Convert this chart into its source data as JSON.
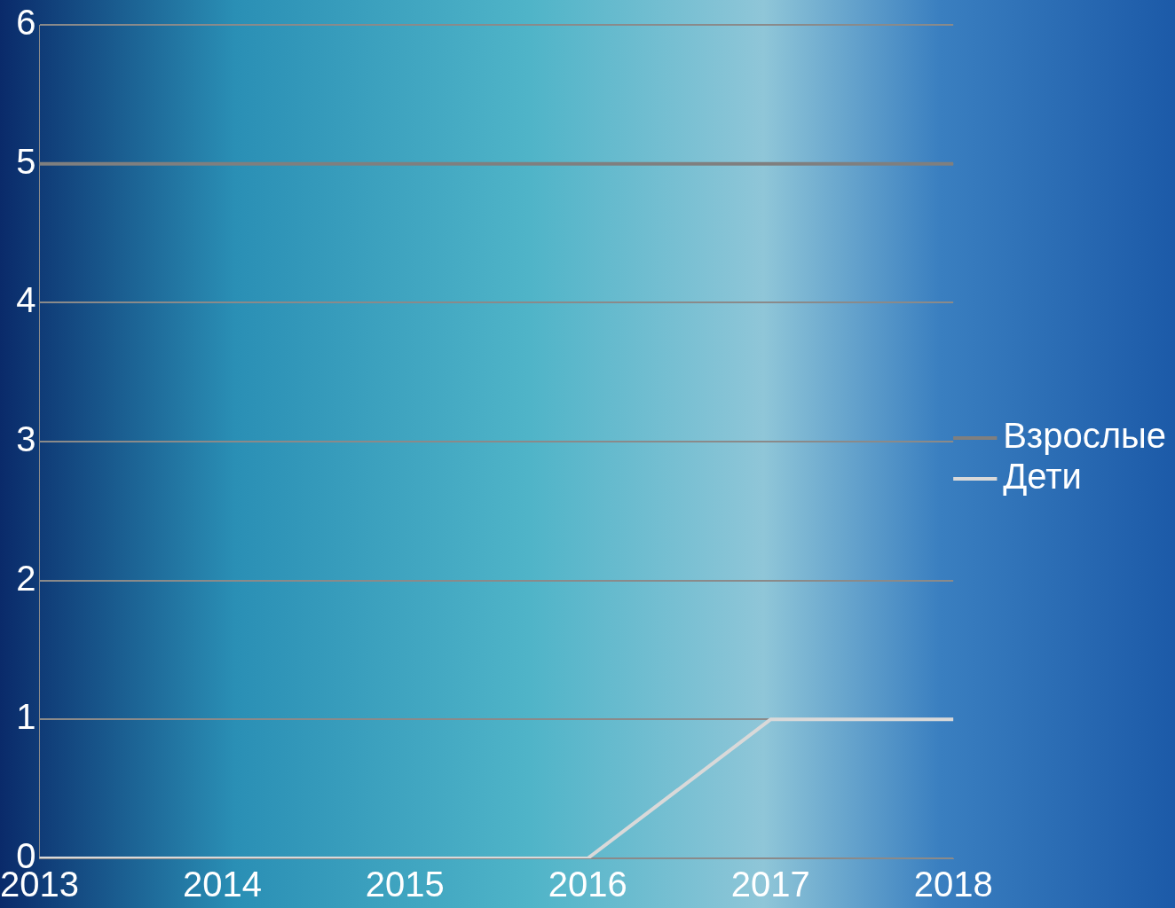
{
  "chart_data": {
    "type": "line",
    "categories": [
      "2013",
      "2014",
      "2015",
      "2016",
      "2017",
      "2018"
    ],
    "series": [
      {
        "name": "Взрослые",
        "color": "#7f7f7f",
        "values": [
          5,
          5,
          5,
          5,
          5,
          5
        ]
      },
      {
        "name": "Дети",
        "color": "#d9d9d9",
        "values": [
          0,
          0,
          0,
          0,
          1,
          1
        ]
      }
    ],
    "ylim": [
      0,
      6
    ],
    "yticks": [
      0,
      1,
      2,
      3,
      4,
      5,
      6
    ],
    "grid": "y",
    "legend": "right",
    "marker": "none",
    "line_style": "solid"
  }
}
